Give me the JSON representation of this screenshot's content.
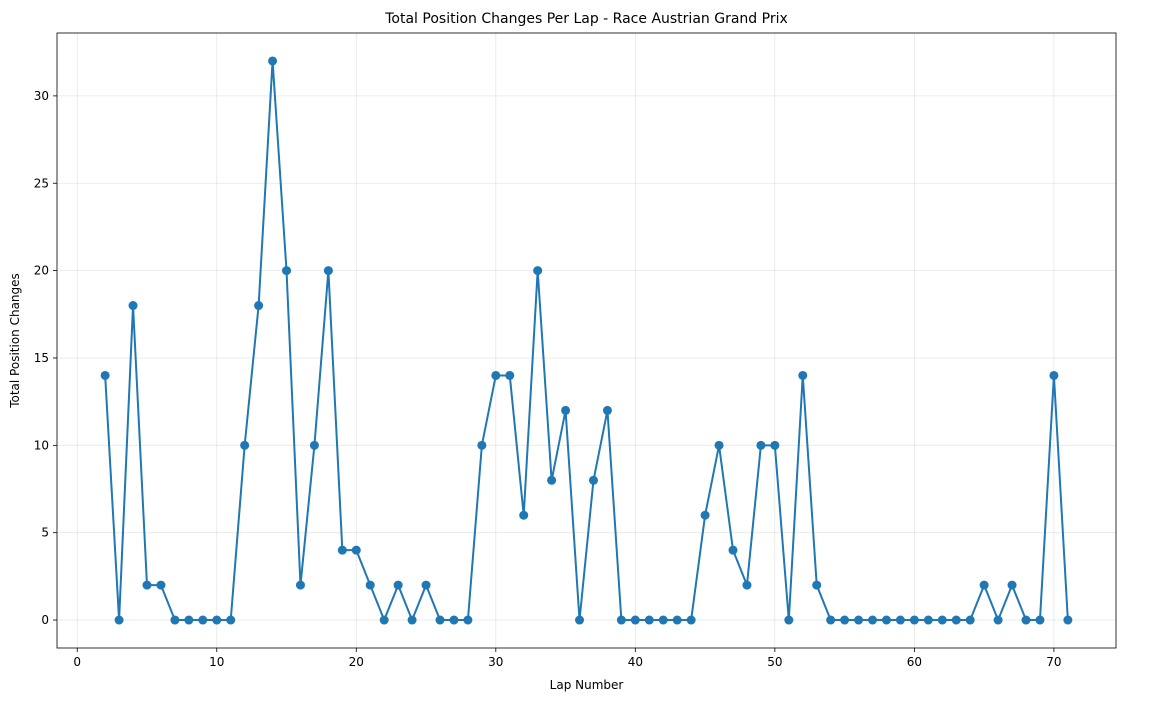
{
  "chart_data": {
    "type": "line",
    "title": "Total Position Changes Per Lap - Race Austrian Grand Prix",
    "xlabel": "Lap Number",
    "ylabel": "Total Position Changes",
    "xlim": [
      -1.45,
      74.45
    ],
    "ylim": [
      -1.6,
      33.6
    ],
    "xticks": [
      0,
      10,
      20,
      30,
      40,
      50,
      60,
      70
    ],
    "yticks": [
      0,
      5,
      10,
      15,
      20,
      25,
      30
    ],
    "grid": true,
    "color": "#1f77b4",
    "x": [
      2,
      3,
      4,
      5,
      6,
      7,
      8,
      9,
      10,
      11,
      12,
      13,
      14,
      15,
      16,
      17,
      18,
      19,
      20,
      21,
      22,
      23,
      24,
      25,
      26,
      27,
      28,
      29,
      30,
      31,
      32,
      33,
      34,
      35,
      36,
      37,
      38,
      39,
      40,
      41,
      42,
      43,
      44,
      45,
      46,
      47,
      48,
      49,
      50,
      51,
      52,
      53,
      54,
      55,
      56,
      57,
      58,
      59,
      60,
      61,
      62,
      63,
      64,
      65,
      66,
      67,
      68,
      69,
      70,
      71
    ],
    "y": [
      14,
      0,
      18,
      2,
      2,
      0,
      0,
      0,
      0,
      0,
      10,
      18,
      32,
      20,
      2,
      10,
      20,
      4,
      4,
      2,
      0,
      2,
      0,
      2,
      0,
      0,
      0,
      10,
      14,
      14,
      6,
      20,
      8,
      12,
      0,
      8,
      12,
      0,
      0,
      0,
      0,
      0,
      0,
      6,
      10,
      4,
      2,
      10,
      10,
      0,
      14,
      2,
      0,
      0,
      0,
      0,
      0,
      0,
      0,
      0,
      0,
      0,
      0,
      2,
      0,
      2,
      0,
      0,
      14,
      0
    ]
  }
}
